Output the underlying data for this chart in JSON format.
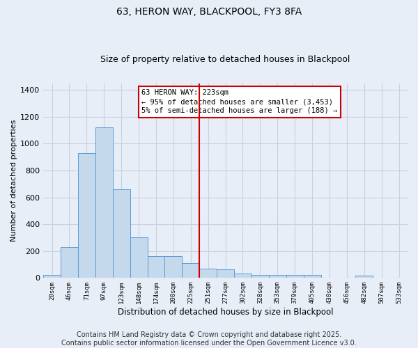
{
  "title": "63, HERON WAY, BLACKPOOL, FY3 8FA",
  "subtitle": "Size of property relative to detached houses in Blackpool",
  "xlabel": "Distribution of detached houses by size in Blackpool",
  "ylabel": "Number of detached properties",
  "categories": [
    "20sqm",
    "46sqm",
    "71sqm",
    "97sqm",
    "123sqm",
    "148sqm",
    "174sqm",
    "200sqm",
    "225sqm",
    "251sqm",
    "277sqm",
    "302sqm",
    "328sqm",
    "353sqm",
    "379sqm",
    "405sqm",
    "430sqm",
    "456sqm",
    "482sqm",
    "507sqm",
    "533sqm"
  ],
  "values": [
    20,
    230,
    930,
    1120,
    660,
    300,
    160,
    160,
    110,
    70,
    65,
    35,
    25,
    25,
    20,
    20,
    0,
    0,
    15,
    0,
    0
  ],
  "bar_color": "#c5d9ed",
  "bar_edge_color": "#5b9bd5",
  "background_color": "#e8eef8",
  "grid_color": "#c8d0e0",
  "vline_color": "#cc0000",
  "annotation_text": "63 HERON WAY: 223sqm\n← 95% of detached houses are smaller (3,453)\n5% of semi-detached houses are larger (188) →",
  "annotation_box_color": "#cc0000",
  "footer_line1": "Contains HM Land Registry data © Crown copyright and database right 2025.",
  "footer_line2": "Contains public sector information licensed under the Open Government Licence v3.0.",
  "ylim": [
    0,
    1450
  ],
  "yticks": [
    0,
    200,
    400,
    600,
    800,
    1000,
    1200,
    1400
  ],
  "title_fontsize": 10,
  "subtitle_fontsize": 9,
  "annotation_fontsize": 7.5,
  "footer_fontsize": 7,
  "ylabel_fontsize": 8,
  "xlabel_fontsize": 8.5
}
